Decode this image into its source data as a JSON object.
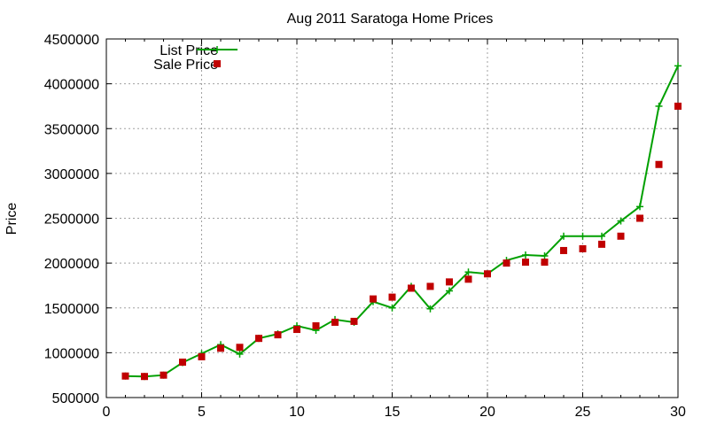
{
  "chart_data": {
    "type": "line",
    "title": "Aug 2011 Saratoga Home Prices",
    "xlabel": "",
    "ylabel": "Price",
    "xlim": [
      0,
      30
    ],
    "ylim": [
      500000,
      4500000
    ],
    "xticks": [
      0,
      5,
      10,
      15,
      20,
      25,
      30
    ],
    "yticks": [
      500000,
      1000000,
      1500000,
      2000000,
      2500000,
      3000000,
      3500000,
      4000000,
      4500000
    ],
    "grid": true,
    "legend_position": "top-left",
    "x": [
      1,
      2,
      3,
      4,
      5,
      6,
      7,
      8,
      9,
      10,
      11,
      12,
      13,
      14,
      15,
      16,
      17,
      18,
      19,
      20,
      21,
      22,
      23,
      24,
      25,
      26,
      27,
      28,
      29,
      30
    ],
    "series": [
      {
        "name": "List Price",
        "style": "line+cross",
        "color": "#00a000",
        "values": [
          740000,
          735000,
          750000,
          890000,
          990000,
          1090000,
          985000,
          1160000,
          1210000,
          1300000,
          1250000,
          1370000,
          1340000,
          1570000,
          1500000,
          1740000,
          1490000,
          1690000,
          1900000,
          1880000,
          2030000,
          2090000,
          2080000,
          2300000,
          2300000,
          2300000,
          2470000,
          2630000,
          3750000,
          4200000
        ]
      },
      {
        "name": "Sale Price",
        "style": "square",
        "color": "#c00000",
        "values": [
          740000,
          735000,
          750000,
          895000,
          955000,
          1050000,
          1060000,
          1160000,
          1200000,
          1260000,
          1300000,
          1340000,
          1350000,
          1600000,
          1620000,
          1720000,
          1740000,
          1790000,
          1820000,
          1880000,
          2000000,
          2010000,
          2010000,
          2140000,
          2160000,
          2210000,
          2300000,
          2500000,
          3100000,
          3750000
        ]
      }
    ]
  }
}
